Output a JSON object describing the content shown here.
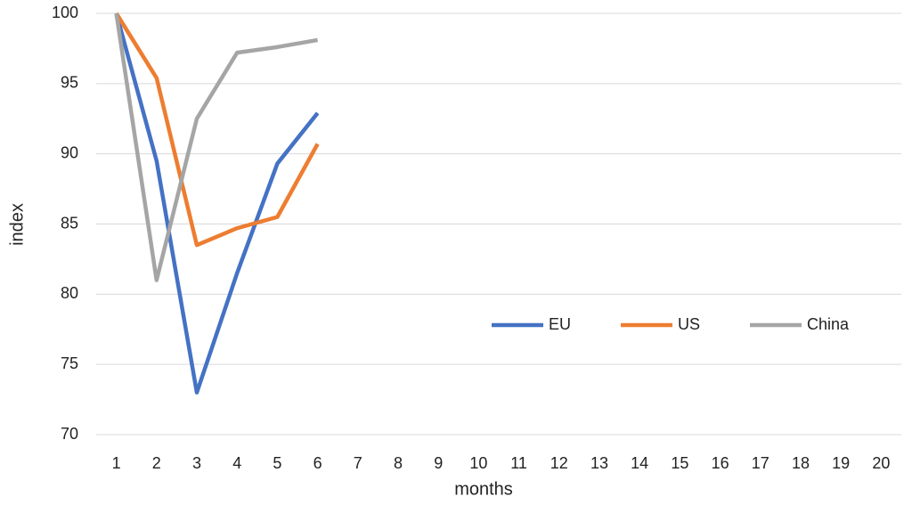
{
  "chart_data": {
    "type": "line",
    "xlabel": "months",
    "ylabel": "index",
    "categories": [
      1,
      2,
      3,
      4,
      5,
      6,
      7,
      8,
      9,
      10,
      11,
      12,
      13,
      14,
      15,
      16,
      17,
      18,
      19,
      20
    ],
    "series": [
      {
        "name": "EU",
        "color": "#4472c4",
        "values": [
          100,
          89.5,
          73,
          81.5,
          89.3,
          92.9,
          null,
          null,
          null,
          null,
          null,
          null,
          null,
          null,
          null,
          null,
          null,
          null,
          null,
          null
        ]
      },
      {
        "name": "US",
        "color": "#ed7d31",
        "values": [
          100,
          95.4,
          83.5,
          84.7,
          85.5,
          90.7,
          null,
          null,
          null,
          null,
          null,
          null,
          null,
          null,
          null,
          null,
          null,
          null,
          null,
          null
        ]
      },
      {
        "name": "China",
        "color": "#a5a5a5",
        "values": [
          100,
          81,
          92.5,
          97.2,
          97.6,
          98.1,
          null,
          null,
          null,
          null,
          null,
          null,
          null,
          null,
          null,
          null,
          null,
          null,
          null,
          null
        ]
      }
    ],
    "ylim": [
      70,
      100
    ],
    "yticks": [
      70,
      75,
      80,
      85,
      90,
      95,
      100
    ],
    "grid": true,
    "legend": "right"
  }
}
